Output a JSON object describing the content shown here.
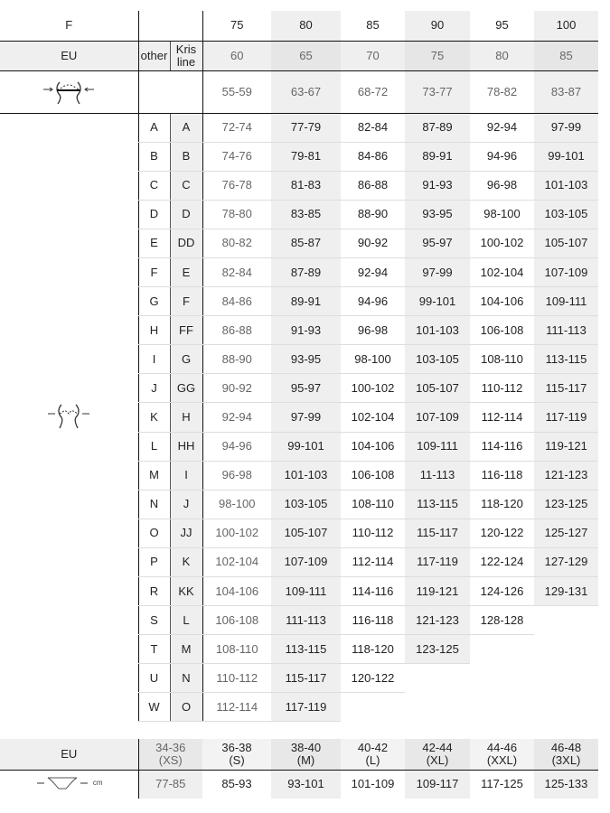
{
  "header": {
    "label": "F",
    "bands": [
      "75",
      "80",
      "85",
      "90",
      "95",
      "100"
    ]
  },
  "eu_row": {
    "label": "EU",
    "other": "other",
    "krisline": "Kris line",
    "values": [
      "60",
      "65",
      "70",
      "75",
      "80",
      "85"
    ]
  },
  "underbust_row": {
    "icon": "underbust-measure-icon",
    "values": [
      "55-59",
      "63-67",
      "68-72",
      "73-77",
      "78-82",
      "83-87"
    ]
  },
  "bust_icon": "bust-measure-icon",
  "cups": [
    {
      "other": "A",
      "kris": "A",
      "values": [
        "72-74",
        "77-79",
        "82-84",
        "87-89",
        "92-94",
        "97-99"
      ]
    },
    {
      "other": "B",
      "kris": "B",
      "values": [
        "74-76",
        "79-81",
        "84-86",
        "89-91",
        "94-96",
        "99-101"
      ]
    },
    {
      "other": "C",
      "kris": "C",
      "values": [
        "76-78",
        "81-83",
        "86-88",
        "91-93",
        "96-98",
        "101-103"
      ]
    },
    {
      "other": "D",
      "kris": "D",
      "values": [
        "78-80",
        "83-85",
        "88-90",
        "93-95",
        "98-100",
        "103-105"
      ]
    },
    {
      "other": "E",
      "kris": "DD",
      "values": [
        "80-82",
        "85-87",
        "90-92",
        "95-97",
        "100-102",
        "105-107"
      ]
    },
    {
      "other": "F",
      "kris": "E",
      "values": [
        "82-84",
        "87-89",
        "92-94",
        "97-99",
        "102-104",
        "107-109"
      ]
    },
    {
      "other": "G",
      "kris": "F",
      "values": [
        "84-86",
        "89-91",
        "94-96",
        "99-101",
        "104-106",
        "109-111"
      ]
    },
    {
      "other": "H",
      "kris": "FF",
      "values": [
        "86-88",
        "91-93",
        "96-98",
        "101-103",
        "106-108",
        "111-113"
      ]
    },
    {
      "other": "I",
      "kris": "G",
      "values": [
        "88-90",
        "93-95",
        "98-100",
        "103-105",
        "108-110",
        "113-115"
      ]
    },
    {
      "other": "J",
      "kris": "GG",
      "values": [
        "90-92",
        "95-97",
        "100-102",
        "105-107",
        "110-112",
        "115-117"
      ]
    },
    {
      "other": "K",
      "kris": "H",
      "values": [
        "92-94",
        "97-99",
        "102-104",
        "107-109",
        "112-114",
        "117-119"
      ]
    },
    {
      "other": "L",
      "kris": "HH",
      "values": [
        "94-96",
        "99-101",
        "104-106",
        "109-111",
        "114-116",
        "119-121"
      ]
    },
    {
      "other": "M",
      "kris": "I",
      "values": [
        "96-98",
        "101-103",
        "106-108",
        "11-113",
        "116-118",
        "121-123"
      ]
    },
    {
      "other": "N",
      "kris": "J",
      "values": [
        "98-100",
        "103-105",
        "108-110",
        "113-115",
        "118-120",
        "123-125"
      ]
    },
    {
      "other": "O",
      "kris": "JJ",
      "values": [
        "100-102",
        "105-107",
        "110-112",
        "115-117",
        "120-122",
        "125-127"
      ]
    },
    {
      "other": "P",
      "kris": "K",
      "values": [
        "102-104",
        "107-109",
        "112-114",
        "117-119",
        "122-124",
        "127-129"
      ]
    },
    {
      "other": "R",
      "kris": "KK",
      "values": [
        "104-106",
        "109-111",
        "114-116",
        "119-121",
        "124-126",
        "129-131"
      ]
    },
    {
      "other": "S",
      "kris": "L",
      "values": [
        "106-108",
        "111-113",
        "116-118",
        "121-123",
        "128-128",
        ""
      ]
    },
    {
      "other": "T",
      "kris": "M",
      "values": [
        "108-110",
        "113-115",
        "118-120",
        "123-125",
        "",
        ""
      ]
    },
    {
      "other": "U",
      "kris": "N",
      "values": [
        "110-112",
        "115-117",
        "120-122",
        "",
        "",
        ""
      ]
    },
    {
      "other": "W",
      "kris": "O",
      "values": [
        "112-114",
        "117-119",
        "",
        "",
        "",
        ""
      ]
    }
  ],
  "briefs": {
    "label": "EU",
    "sizes": [
      "34-36 (XS)",
      "36-38 (S)",
      "38-40 (M)",
      "40-42 (L)",
      "42-44 (XL)",
      "44-46 (XXL)",
      "46-48 (3XL)"
    ],
    "hip_icon": "hip-measure-icon",
    "hip_unit": "cm",
    "hips": [
      "77-85",
      "85-93",
      "93-101",
      "101-109",
      "109-117",
      "117-125",
      "125-133"
    ]
  }
}
